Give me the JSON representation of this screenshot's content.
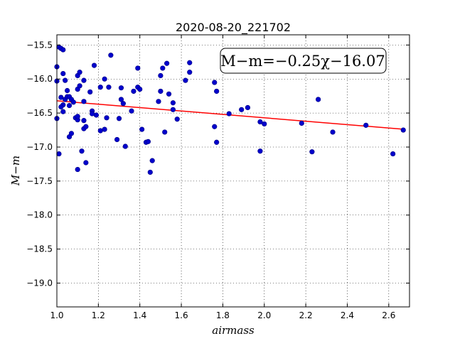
{
  "chart_data": {
    "type": "scatter",
    "title": "2020-08-20_221702",
    "xlabel": "airmass",
    "ylabel": "M−m",
    "annotation": "M−m=−0.25χ−16.07",
    "xlim": [
      1.0,
      2.7
    ],
    "ylim": [
      -19.35,
      -15.35
    ],
    "y_inverted": true,
    "x_ticks": [
      1.0,
      1.2,
      1.4,
      1.6,
      1.8,
      2.0,
      2.2,
      2.4,
      2.6
    ],
    "x_tick_labels": [
      "1.0",
      "1.2",
      "1.4",
      "1.6",
      "1.8",
      "2.0",
      "2.2",
      "2.4",
      "2.6"
    ],
    "y_ticks": [
      -15.5,
      -16.0,
      -16.5,
      -17.0,
      -17.5,
      -18.0,
      -18.5,
      -19.0
    ],
    "y_tick_labels": [
      "−15.5",
      "−16.0",
      "−16.5",
      "−17.0",
      "−17.5",
      "−18.0",
      "−18.5",
      "−19.0"
    ],
    "grid": true,
    "points_color": "#0000cc",
    "fit_color": "#ff0000",
    "fit": {
      "slope": -0.25,
      "intercept": -16.07
    },
    "points": [
      [
        1.0,
        -15.82
      ],
      [
        1.0,
        -16.03
      ],
      [
        1.0,
        -16.58
      ],
      [
        1.01,
        -17.1
      ],
      [
        1.01,
        -15.53
      ],
      [
        1.02,
        -15.55
      ],
      [
        1.03,
        -15.57
      ],
      [
        1.03,
        -15.92
      ],
      [
        1.02,
        -16.27
      ],
      [
        1.03,
        -16.38
      ],
      [
        1.02,
        -16.41
      ],
      [
        1.04,
        -16.3
      ],
      [
        1.05,
        -16.26
      ],
      [
        1.03,
        -16.48
      ],
      [
        1.04,
        -16.02
      ],
      [
        1.05,
        -16.17
      ],
      [
        1.06,
        -16.26
      ],
      [
        1.06,
        -16.39
      ],
      [
        1.07,
        -16.3
      ],
      [
        1.08,
        -16.34
      ],
      [
        1.06,
        -16.85
      ],
      [
        1.07,
        -16.8
      ],
      [
        1.09,
        -16.57
      ],
      [
        1.1,
        -16.6
      ],
      [
        1.1,
        -16.55
      ],
      [
        1.1,
        -16.15
      ],
      [
        1.1,
        -15.95
      ],
      [
        1.11,
        -16.1
      ],
      [
        1.11,
        -15.9
      ],
      [
        1.12,
        -17.06
      ],
      [
        1.1,
        -17.33
      ],
      [
        1.13,
        -16.02
      ],
      [
        1.13,
        -16.33
      ],
      [
        1.13,
        -16.61
      ],
      [
        1.13,
        -16.73
      ],
      [
        1.14,
        -16.7
      ],
      [
        1.14,
        -17.23
      ],
      [
        1.16,
        -16.19
      ],
      [
        1.17,
        -16.47
      ],
      [
        1.17,
        -16.51
      ],
      [
        1.18,
        -15.8
      ],
      [
        1.19,
        -16.53
      ],
      [
        1.21,
        -16.12
      ],
      [
        1.21,
        -16.76
      ],
      [
        1.23,
        -16.74
      ],
      [
        1.23,
        -16.0
      ],
      [
        1.24,
        -16.57
      ],
      [
        1.25,
        -16.12
      ],
      [
        1.26,
        -15.65
      ],
      [
        1.29,
        -16.89
      ],
      [
        1.3,
        -16.58
      ],
      [
        1.31,
        -16.13
      ],
      [
        1.31,
        -16.3
      ],
      [
        1.32,
        -16.36
      ],
      [
        1.33,
        -16.99
      ],
      [
        1.36,
        -16.47
      ],
      [
        1.37,
        -16.18
      ],
      [
        1.39,
        -15.84
      ],
      [
        1.39,
        -16.12
      ],
      [
        1.4,
        -16.15
      ],
      [
        1.41,
        -16.74
      ],
      [
        1.43,
        -16.93
      ],
      [
        1.44,
        -16.92
      ],
      [
        1.45,
        -17.37
      ],
      [
        1.46,
        -17.2
      ],
      [
        1.49,
        -16.33
      ],
      [
        1.5,
        -15.95
      ],
      [
        1.5,
        -16.18
      ],
      [
        1.51,
        -15.84
      ],
      [
        1.52,
        -16.78
      ],
      [
        1.53,
        -15.77
      ],
      [
        1.54,
        -16.22
      ],
      [
        1.56,
        -16.35
      ],
      [
        1.56,
        -16.45
      ],
      [
        1.58,
        -16.59
      ],
      [
        1.62,
        -16.02
      ],
      [
        1.64,
        -15.76
      ],
      [
        1.64,
        -15.9
      ],
      [
        1.76,
        -16.7
      ],
      [
        1.76,
        -16.05
      ],
      [
        1.77,
        -16.18
      ],
      [
        1.77,
        -16.93
      ],
      [
        1.83,
        -16.51
      ],
      [
        1.89,
        -16.45
      ],
      [
        1.92,
        -16.42
      ],
      [
        1.98,
        -17.06
      ],
      [
        1.98,
        -16.63
      ],
      [
        2.0,
        -16.66
      ],
      [
        2.18,
        -16.65
      ],
      [
        2.23,
        -17.07
      ],
      [
        2.26,
        -16.3
      ],
      [
        2.33,
        -16.78
      ],
      [
        2.49,
        -16.68
      ],
      [
        2.62,
        -17.1
      ],
      [
        2.67,
        -16.75
      ]
    ]
  }
}
